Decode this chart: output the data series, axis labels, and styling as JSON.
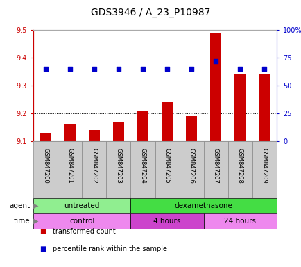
{
  "title": "GDS3946 / A_23_P10987",
  "samples": [
    "GSM847200",
    "GSM847201",
    "GSM847202",
    "GSM847203",
    "GSM847204",
    "GSM847205",
    "GSM847206",
    "GSM847207",
    "GSM847208",
    "GSM847209"
  ],
  "transformed_count": [
    9.13,
    9.16,
    9.14,
    9.17,
    9.21,
    9.24,
    9.19,
    9.49,
    9.34,
    9.34
  ],
  "percentile_rank": [
    65,
    65,
    65,
    65,
    65,
    65,
    65,
    72,
    65,
    65
  ],
  "ylim_left": [
    9.1,
    9.5
  ],
  "ylim_right": [
    0,
    100
  ],
  "yticks_left": [
    9.1,
    9.2,
    9.3,
    9.4,
    9.5
  ],
  "yticks_right": [
    0,
    25,
    50,
    75,
    100
  ],
  "yticklabels_right": [
    "0",
    "25",
    "50",
    "75",
    "100%"
  ],
  "bar_color": "#cc0000",
  "dot_color": "#0000cc",
  "bar_bottom": 9.1,
  "agent_groups": [
    {
      "label": "untreated",
      "start": 0,
      "end": 4,
      "color": "#90ee90"
    },
    {
      "label": "dexamethasone",
      "start": 4,
      "end": 10,
      "color": "#44dd44"
    }
  ],
  "time_groups": [
    {
      "label": "control",
      "start": 0,
      "end": 4,
      "color": "#ee88ee"
    },
    {
      "label": "4 hours",
      "start": 4,
      "end": 7,
      "color": "#cc44cc"
    },
    {
      "label": "24 hours",
      "start": 7,
      "end": 10,
      "color": "#ee88ee"
    }
  ],
  "legend_items": [
    {
      "label": "transformed count",
      "color": "#cc0000"
    },
    {
      "label": "percentile rank within the sample",
      "color": "#0000cc"
    }
  ],
  "grid_color": "#000000",
  "left_tick_color": "#cc0000",
  "right_tick_color": "#0000cc",
  "sample_bg_color": "#cccccc",
  "plot_bg": "#ffffff"
}
